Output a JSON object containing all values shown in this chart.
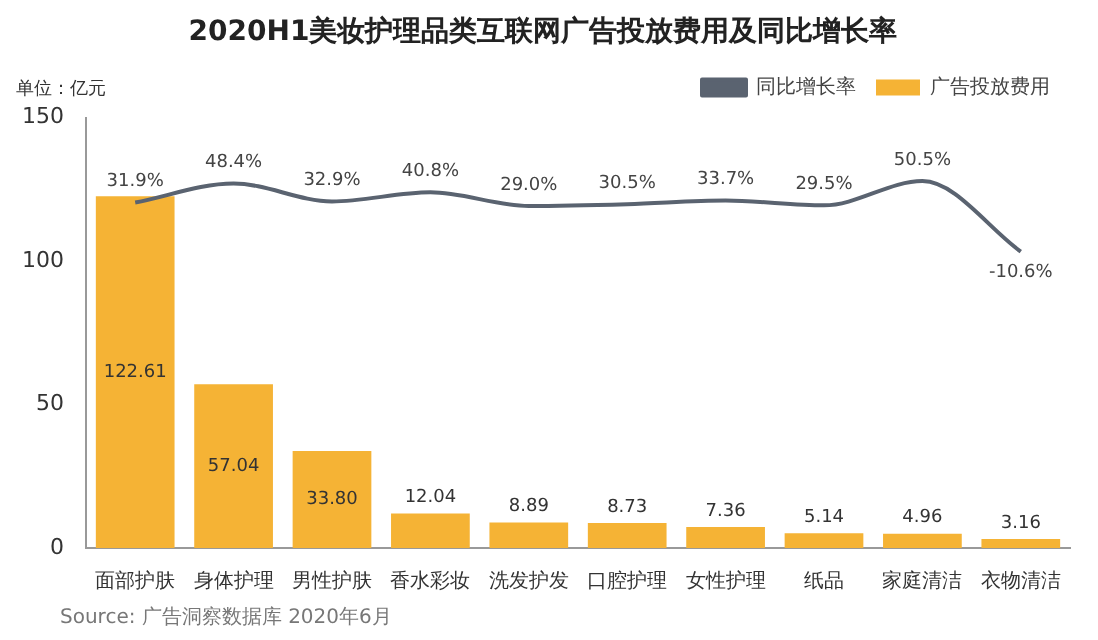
{
  "chart_data": {
    "type": "bar",
    "title": "2020H1美妆护理品类互联网广告投放费用及同比增长率",
    "ylabel": "单位：亿元",
    "categories": [
      "面部护肤",
      "身体护理",
      "男性护肤",
      "香水彩妆",
      "洗发护发",
      "口腔护理",
      "女性护理",
      "纸品",
      "家庭清洁",
      "衣物清洁"
    ],
    "series": [
      {
        "name": "广告投放费用",
        "color": "#f5b335",
        "values": [
          122.61,
          57.04,
          33.8,
          12.04,
          8.89,
          8.73,
          7.36,
          5.14,
          4.96,
          3.16
        ],
        "value_labels": [
          "122.61",
          "57.04",
          "33.80",
          "12.04",
          "8.89",
          "8.73",
          "7.36",
          "5.14",
          "4.96",
          "3.16"
        ]
      },
      {
        "name": "同比增长率",
        "type": "line",
        "axis": "y2",
        "color": "#5a6370",
        "values": [
          31.9,
          48.4,
          32.9,
          40.8,
          29.0,
          30.5,
          33.7,
          29.5,
          50.5,
          -10.6
        ],
        "value_labels": [
          "31.9%",
          "48.4%",
          "32.9%",
          "40.8%",
          "29.0%",
          "30.5%",
          "33.7%",
          "29.5%",
          "50.5%",
          "-10.6%"
        ]
      }
    ],
    "ylim": [
      0,
      150
    ],
    "yticks": [
      0,
      50,
      100,
      150
    ],
    "grid": false,
    "legend": "top right",
    "marker": "none",
    "line_style": "solid",
    "annotations": [
      "Source: 广告洞察数据库 2020年6月"
    ]
  }
}
